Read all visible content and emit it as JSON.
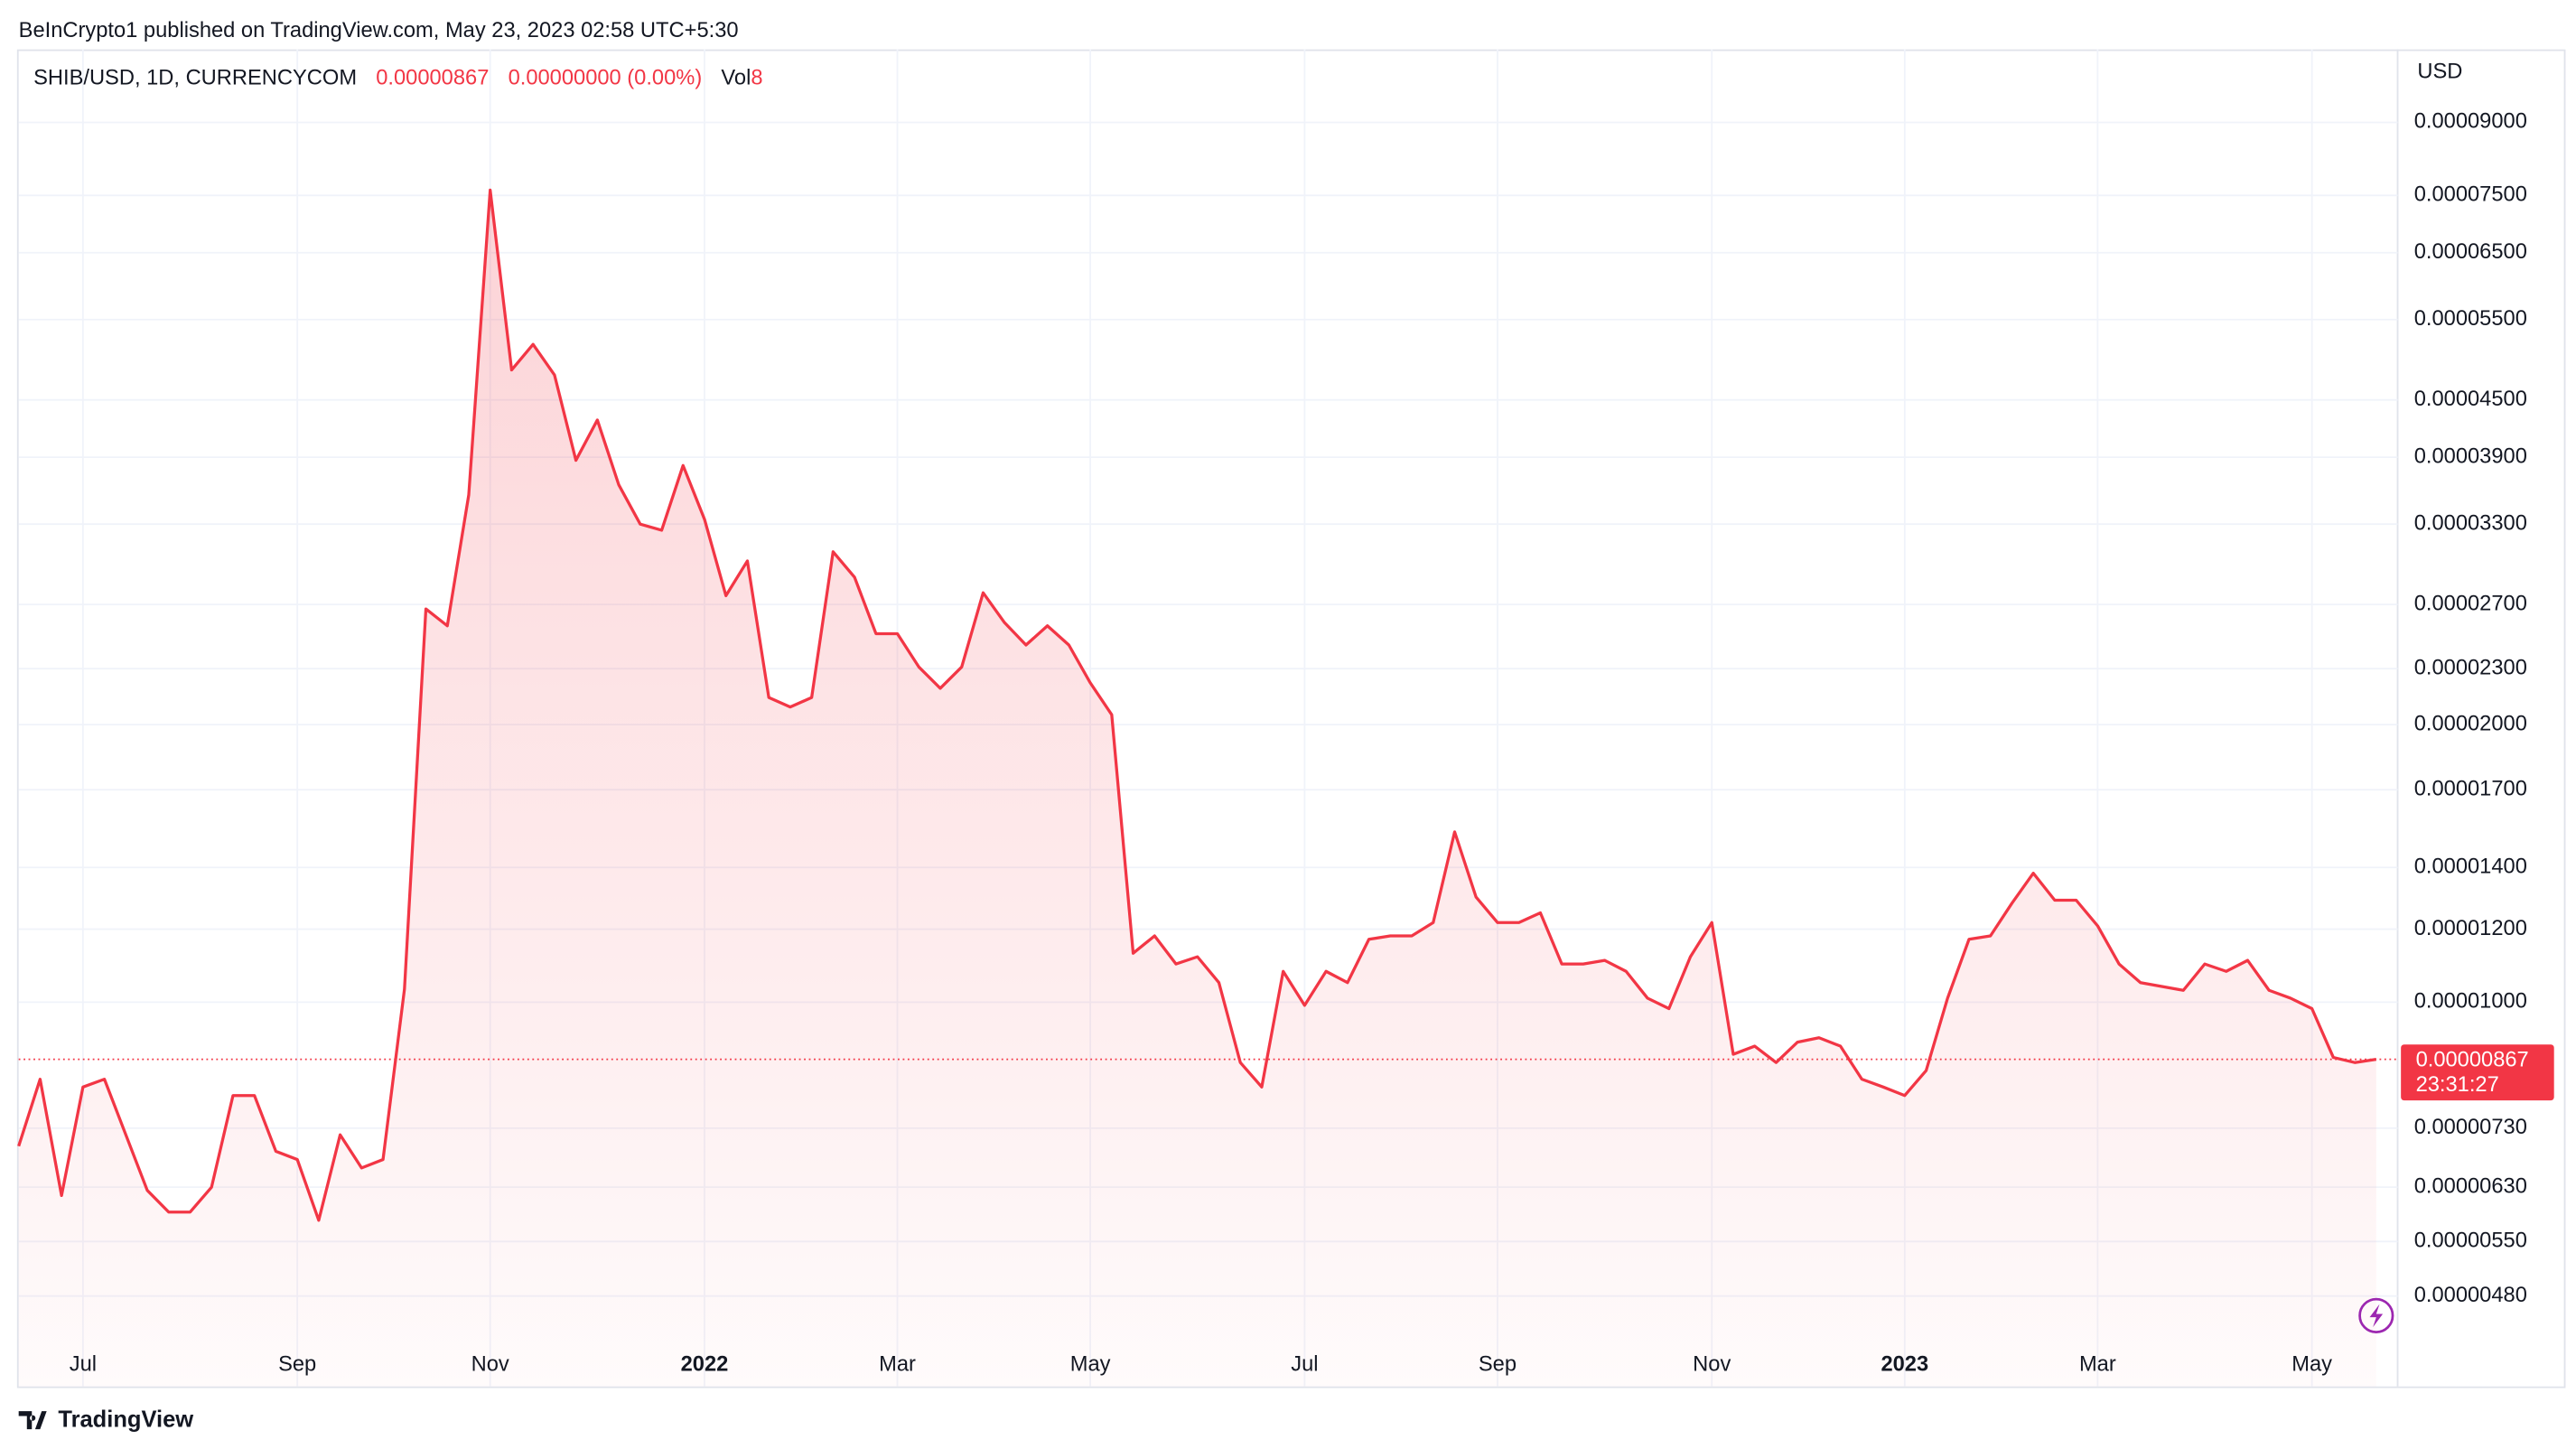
{
  "header": "BeInCrypto1 published on TradingView.com, May 23, 2023 02:58 UTC+5:30",
  "footer": "TradingView",
  "chart_data": {
    "type": "line",
    "symbol": "SHIB/USD, 1D, CURRENCYCOM",
    "close": "0.00000867",
    "change": "0.00000000 (0.00%)",
    "volume_label": "Vol",
    "volume": "8",
    "y_axis_label": "USD",
    "last_price": {
      "value": 8.67e-06,
      "label": "0.00000867"
    },
    "countdown": "23:31:27",
    "log_scale": true,
    "grid": true,
    "color": "#f23645",
    "categories": [
      null,
      null,
      null,
      "Jul",
      null,
      null,
      null,
      null,
      null,
      null,
      null,
      null,
      null,
      "Sep",
      null,
      null,
      null,
      null,
      null,
      null,
      null,
      null,
      "Nov",
      null,
      null,
      null,
      null,
      null,
      null,
      null,
      null,
      null,
      "2022",
      null,
      null,
      null,
      null,
      null,
      null,
      null,
      null,
      "Mar",
      null,
      null,
      null,
      null,
      null,
      null,
      null,
      null,
      "May",
      null,
      null,
      null,
      null,
      null,
      null,
      null,
      null,
      null,
      "Jul",
      null,
      null,
      null,
      null,
      null,
      null,
      null,
      null,
      "Sep",
      null,
      null,
      null,
      null,
      null,
      null,
      null,
      null,
      null,
      "Nov",
      null,
      null,
      null,
      null,
      null,
      null,
      null,
      null,
      "2023",
      null,
      null,
      null,
      null,
      null,
      null,
      null,
      null,
      "Mar",
      null,
      null,
      null,
      null,
      null,
      null,
      null,
      null,
      null,
      "May",
      null,
      null,
      null
    ],
    "values": [
      6.98e-06,
      8.25e-06,
      6.17e-06,
      8.09e-06,
      8.25e-06,
      7.18e-06,
      6.25e-06,
      5.92e-06,
      5.92e-06,
      6.3e-06,
      7.92e-06,
      7.92e-06,
      6.89e-06,
      6.75e-06,
      5.8e-06,
      7.18e-06,
      6.61e-06,
      6.75e-06,
      1.033e-05,
      2.67e-05,
      2.56e-05,
      3.55e-05,
      7.6e-05,
      4.85e-05,
      5.17e-05,
      4.79e-05,
      3.87e-05,
      4.28e-05,
      3.64e-05,
      3.3e-05,
      3.25e-05,
      3.82e-05,
      3.34e-05,
      2.76e-05,
      3.01e-05,
      2.14e-05,
      2.09e-05,
      2.14e-05,
      3.08e-05,
      2.89e-05,
      2.51e-05,
      2.51e-05,
      2.31e-05,
      2.19e-05,
      2.31e-05,
      2.78e-05,
      2.58e-05,
      2.44e-05,
      2.56e-05,
      2.44e-05,
      2.22e-05,
      2.05e-05,
      1.13e-05,
      1.18e-05,
      1.1e-05,
      1.12e-05,
      1.05e-05,
      8.6e-06,
      8.09e-06,
      1.08e-05,
      9.92e-06,
      1.08e-05,
      1.05e-05,
      1.17e-05,
      1.18e-05,
      1.18e-05,
      1.22e-05,
      1.53e-05,
      1.3e-05,
      1.22e-05,
      1.22e-05,
      1.25e-05,
      1.1e-05,
      1.1e-05,
      1.11e-05,
      1.08e-05,
      1.01e-05,
      9.84e-06,
      1.12e-05,
      1.22e-05,
      8.78e-06,
      8.96e-06,
      8.6e-06,
      9.05e-06,
      9.15e-06,
      8.96e-06,
      8.25e-06,
      8.09e-06,
      7.92e-06,
      8.43e-06,
      1.01e-05,
      1.17e-05,
      1.18e-05,
      1.28e-05,
      1.38e-05,
      1.29e-05,
      1.29e-05,
      1.21e-05,
      1.1e-05,
      1.05e-05,
      1.04e-05,
      1.03e-05,
      1.1e-05,
      1.08e-05,
      1.11e-05,
      1.03e-05,
      1.01e-05,
      9.84e-06,
      8.71e-06,
      8.6e-06,
      8.67e-06
    ],
    "ylim": [
      3.83e-06,
      0.000108
    ],
    "yticks": [
      {
        "value": 9e-05,
        "label": "0.00009000"
      },
      {
        "value": 7.5e-05,
        "label": "0.00007500"
      },
      {
        "value": 6.5e-05,
        "label": "0.00006500"
      },
      {
        "value": 5.5e-05,
        "label": "0.00005500"
      },
      {
        "value": 4.5e-05,
        "label": "0.00004500"
      },
      {
        "value": 3.9e-05,
        "label": "0.00003900"
      },
      {
        "value": 3.3e-05,
        "label": "0.00003300"
      },
      {
        "value": 2.7e-05,
        "label": "0.00002700"
      },
      {
        "value": 2.3e-05,
        "label": "0.00002300"
      },
      {
        "value": 2e-05,
        "label": "0.00002000"
      },
      {
        "value": 1.7e-05,
        "label": "0.00001700"
      },
      {
        "value": 1.4e-05,
        "label": "0.00001400"
      },
      {
        "value": 1.2e-05,
        "label": "0.00001200"
      },
      {
        "value": 1e-05,
        "label": "0.00001000"
      },
      {
        "value": 7.3e-06,
        "label": "0.00000730"
      },
      {
        "value": 6.3e-06,
        "label": "0.00000630"
      },
      {
        "value": 5.5e-06,
        "label": "0.00000550"
      },
      {
        "value": 4.8e-06,
        "label": "0.00000480"
      }
    ]
  }
}
